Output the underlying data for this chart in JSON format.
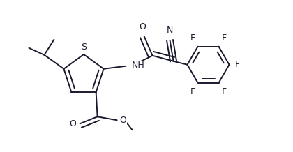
{
  "bg_color": "#ffffff",
  "line_color": "#1a1a2e",
  "line_width": 1.4,
  "font_size": 8.5,
  "fig_width": 4.2,
  "fig_height": 2.18,
  "dpi": 100,
  "xlim": [
    0,
    4.2
  ],
  "ylim": [
    0,
    2.18
  ]
}
